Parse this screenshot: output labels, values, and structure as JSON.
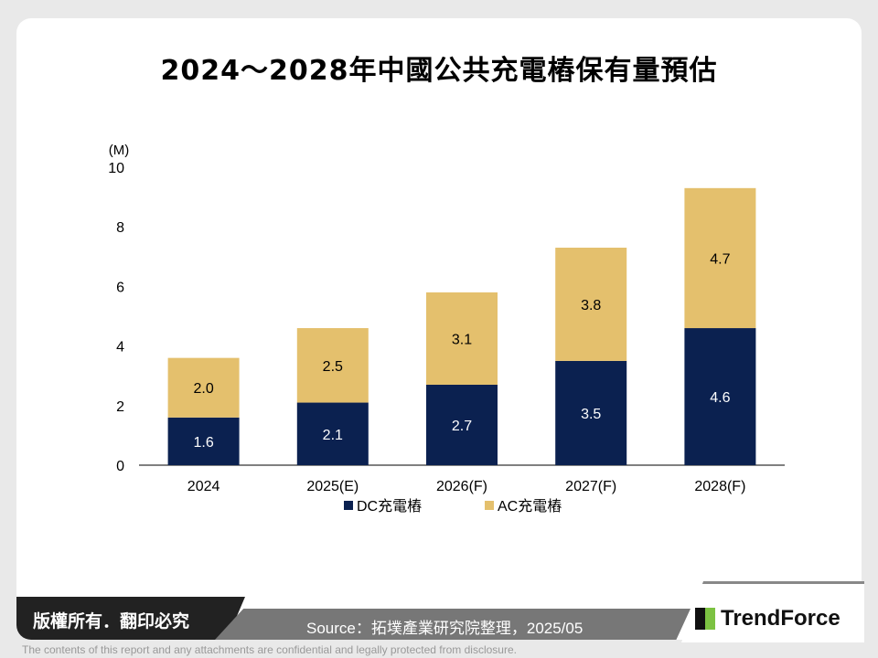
{
  "title": "2024～2028年中國公共充電樁保有量預估",
  "chart_data": {
    "type": "bar",
    "stacked": true,
    "categories": [
      "2024",
      "2025(E)",
      "2026(F)",
      "2027(F)",
      "2028(F)"
    ],
    "series": [
      {
        "name": "DC充電樁",
        "values": [
          1.6,
          2.1,
          2.7,
          3.5,
          4.6
        ],
        "color": "#0b2150"
      },
      {
        "name": "AC充電樁",
        "values": [
          2.0,
          2.5,
          3.1,
          3.8,
          4.7
        ],
        "color": "#e4c06d"
      }
    ],
    "ylabel": "(M)",
    "ylim": [
      0,
      10
    ],
    "yticks": [
      0,
      2,
      4,
      6,
      8,
      10
    ],
    "legend": "bottom",
    "grid": false
  },
  "footer": {
    "copyright": "版權所有．翻印必究",
    "source": "Source：拓墣產業研究院整理，2025/05",
    "brand": "TrendForce",
    "disclaimer": "The contents of this report and any attachments are confidential and legally protected from disclosure."
  }
}
